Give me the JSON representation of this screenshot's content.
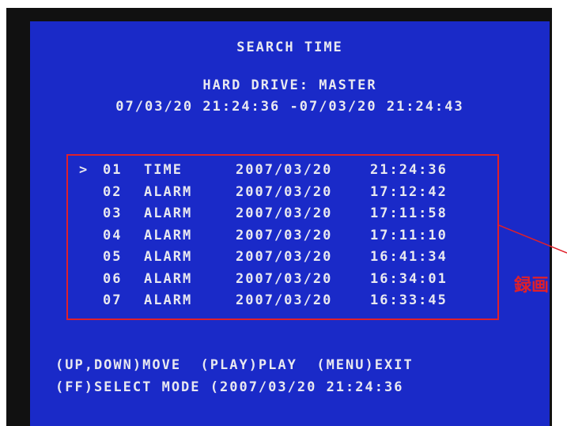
{
  "header": {
    "title": "SEARCH TIME",
    "drive": "HARD DRIVE: MASTER",
    "range": "07/03/20 21:24:36 -07/03/20 21:24:43"
  },
  "list": {
    "marker": ">",
    "rows": [
      {
        "number": "01",
        "type": "TIME",
        "date": "2007/03/20",
        "time": "21:24:36"
      },
      {
        "number": "02",
        "type": "ALARM",
        "date": "2007/03/20",
        "time": "17:12:42"
      },
      {
        "number": "03",
        "type": "ALARM",
        "date": "2007/03/20",
        "time": "17:11:58"
      },
      {
        "number": "04",
        "type": "ALARM",
        "date": "2007/03/20",
        "time": "17:11:10"
      },
      {
        "number": "05",
        "type": "ALARM",
        "date": "2007/03/20",
        "time": "16:41:34"
      },
      {
        "number": "06",
        "type": "ALARM",
        "date": "2007/03/20",
        "time": "16:34:01"
      },
      {
        "number": "07",
        "type": "ALARM",
        "date": "2007/03/20",
        "time": "16:33:45"
      }
    ]
  },
  "footer": {
    "lines": [
      "(UP,DOWN)MOVE  (PLAY)PLAY  (MENU)EXIT",
      "(FF)SELECT MODE (2007/03/20 21:24:36"
    ]
  },
  "annotation": "録画"
}
